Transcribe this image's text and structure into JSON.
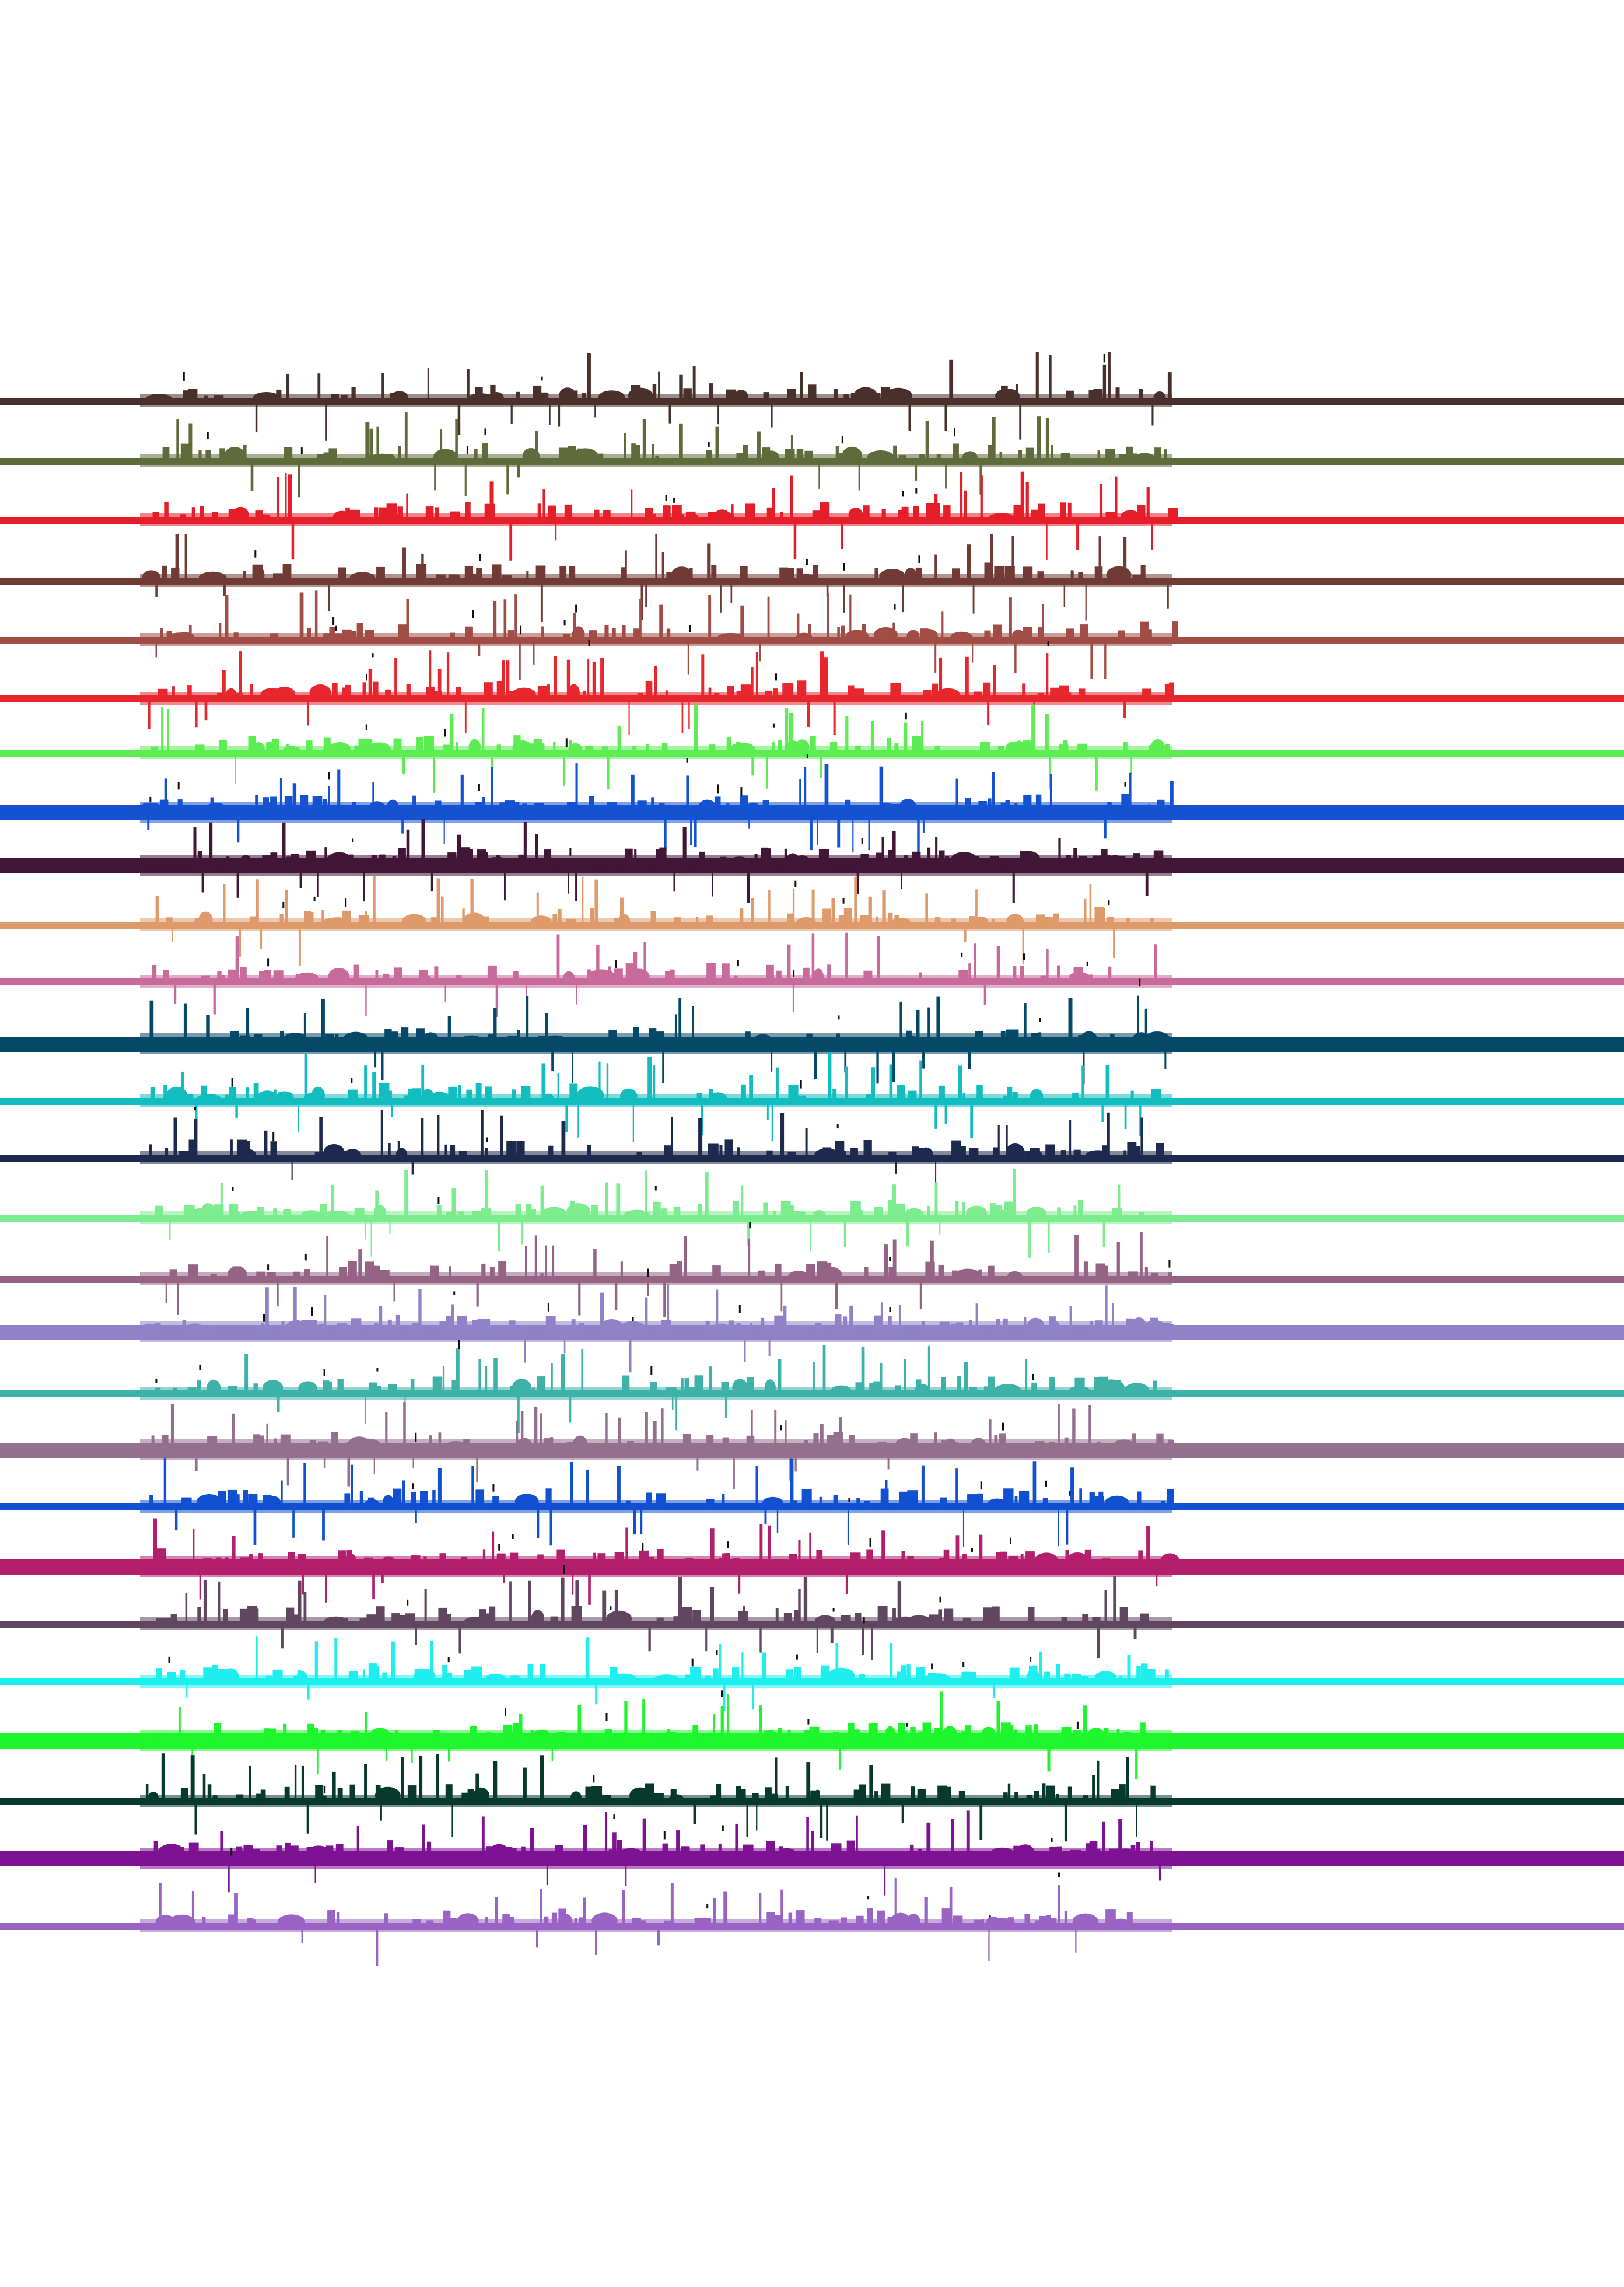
{
  "document": {
    "type": "text-line-segmentation-mask",
    "background_color": "#ffffff",
    "line_count": 27
  },
  "lines": [
    {
      "color": "#4a302a",
      "weight": "thin",
      "ink_density": 0.45
    },
    {
      "color": "#5f6b3a",
      "weight": "thin",
      "ink_density": 0.55
    },
    {
      "color": "#e51f2a",
      "weight": "thin",
      "ink_density": 0.6
    },
    {
      "color": "#713a35",
      "weight": "thin",
      "ink_density": 0.45
    },
    {
      "color": "#a14c45",
      "weight": "thin",
      "ink_density": 0.5
    },
    {
      "color": "#e8262e",
      "weight": "thin",
      "ink_density": 0.6
    },
    {
      "color": "#5ced52",
      "weight": "thin",
      "ink_density": 0.5
    },
    {
      "color": "#1552d1",
      "weight": "thick",
      "ink_density": 0.7
    },
    {
      "color": "#421637",
      "weight": "thick",
      "ink_density": 0.65
    },
    {
      "color": "#df9a6c",
      "weight": "thin",
      "ink_density": 0.45
    },
    {
      "color": "#c86b9b",
      "weight": "thin",
      "ink_density": 0.4
    },
    {
      "color": "#064868",
      "weight": "thick",
      "ink_density": 0.55
    },
    {
      "color": "#12bdbf",
      "weight": "thin",
      "ink_density": 0.5
    },
    {
      "color": "#1d2a4d",
      "weight": "thin",
      "ink_density": 0.55
    },
    {
      "color": "#7dec8e",
      "weight": "thin",
      "ink_density": 0.45
    },
    {
      "color": "#956485",
      "weight": "thin",
      "ink_density": 0.45
    },
    {
      "color": "#8f82c6",
      "weight": "thick",
      "ink_density": 0.7
    },
    {
      "color": "#3eb2a9",
      "weight": "thin",
      "ink_density": 0.55
    },
    {
      "color": "#94708f",
      "weight": "thick",
      "ink_density": 0.6
    },
    {
      "color": "#1150d0",
      "weight": "thin",
      "ink_density": 0.55
    },
    {
      "color": "#b21f6c",
      "weight": "thick",
      "ink_density": 0.65
    },
    {
      "color": "#614660",
      "weight": "thin",
      "ink_density": 0.5
    },
    {
      "color": "#1eeeee",
      "weight": "thin",
      "ink_density": 0.5
    },
    {
      "color": "#1ff52c",
      "weight": "thick",
      "ink_density": 0.6
    },
    {
      "color": "#07392d",
      "weight": "thin",
      "ink_density": 0.55
    },
    {
      "color": "#7d1393",
      "weight": "thick",
      "ink_density": 0.65
    },
    {
      "color": "#9a64c4",
      "weight": "thin",
      "ink_density": 0.5
    }
  ]
}
